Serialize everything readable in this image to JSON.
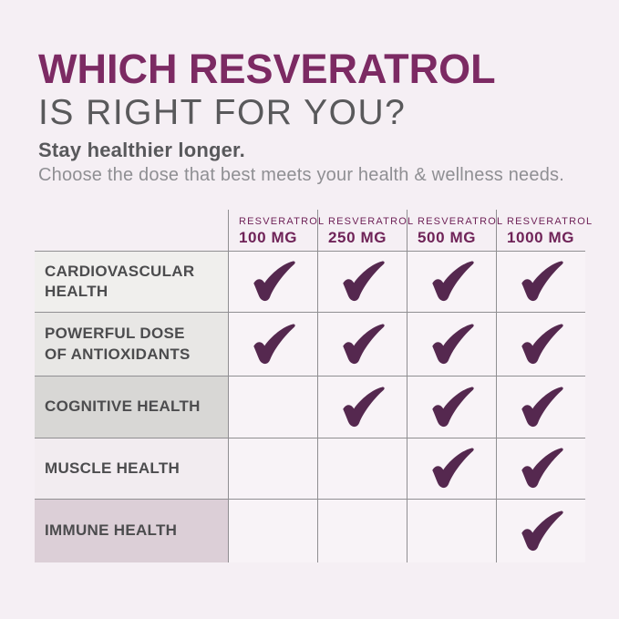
{
  "page": {
    "title": "WHICH RESVERATROL",
    "subtitle": "IS RIGHT FOR YOU?",
    "tagline": "Stay healthier longer.",
    "description": "Choose the dose that best meets your health & wellness needs."
  },
  "colors": {
    "page_bg": "#f5eff4",
    "title": "#7c2a63",
    "subtitle": "#59595b",
    "tagline": "#58585b",
    "description": "#8f8f93",
    "header_text": "#6f2358",
    "row_label_text": "#4c4c4e",
    "grid_line": "#908f92",
    "cell_bg": "#f8f3f7",
    "check": "#55284f"
  },
  "icons": {
    "check": "checkmark-icon"
  },
  "chart_data": {
    "type": "table",
    "title": "Which Resveratrol is right for you?",
    "columns": [
      {
        "brand": "RESVERATROL",
        "dose": "100 MG"
      },
      {
        "brand": "RESVERATROL",
        "dose": "250 MG"
      },
      {
        "brand": "RESVERATROL",
        "dose": "500 MG"
      },
      {
        "brand": "RESVERATROL",
        "dose": "1000 MG"
      }
    ],
    "rows": [
      {
        "label": "CARDIOVASCULAR\nHEALTH",
        "label_bg": "#f0efed",
        "checks": [
          true,
          true,
          true,
          true
        ]
      },
      {
        "label": "POWERFUL DOSE\nOF ANTIOXIDANTS",
        "label_bg": "#e8e7e5",
        "checks": [
          true,
          true,
          true,
          true
        ]
      },
      {
        "label": "COGNITIVE HEALTH",
        "label_bg": "#d8d7d5",
        "checks": [
          false,
          true,
          true,
          true
        ]
      },
      {
        "label": "MUSCLE HEALTH",
        "label_bg": "#f2ecf0",
        "checks": [
          false,
          false,
          true,
          true
        ]
      },
      {
        "label": "IMMUNE HEALTH",
        "label_bg": "#dccfd7",
        "checks": [
          false,
          false,
          false,
          true
        ]
      }
    ]
  }
}
